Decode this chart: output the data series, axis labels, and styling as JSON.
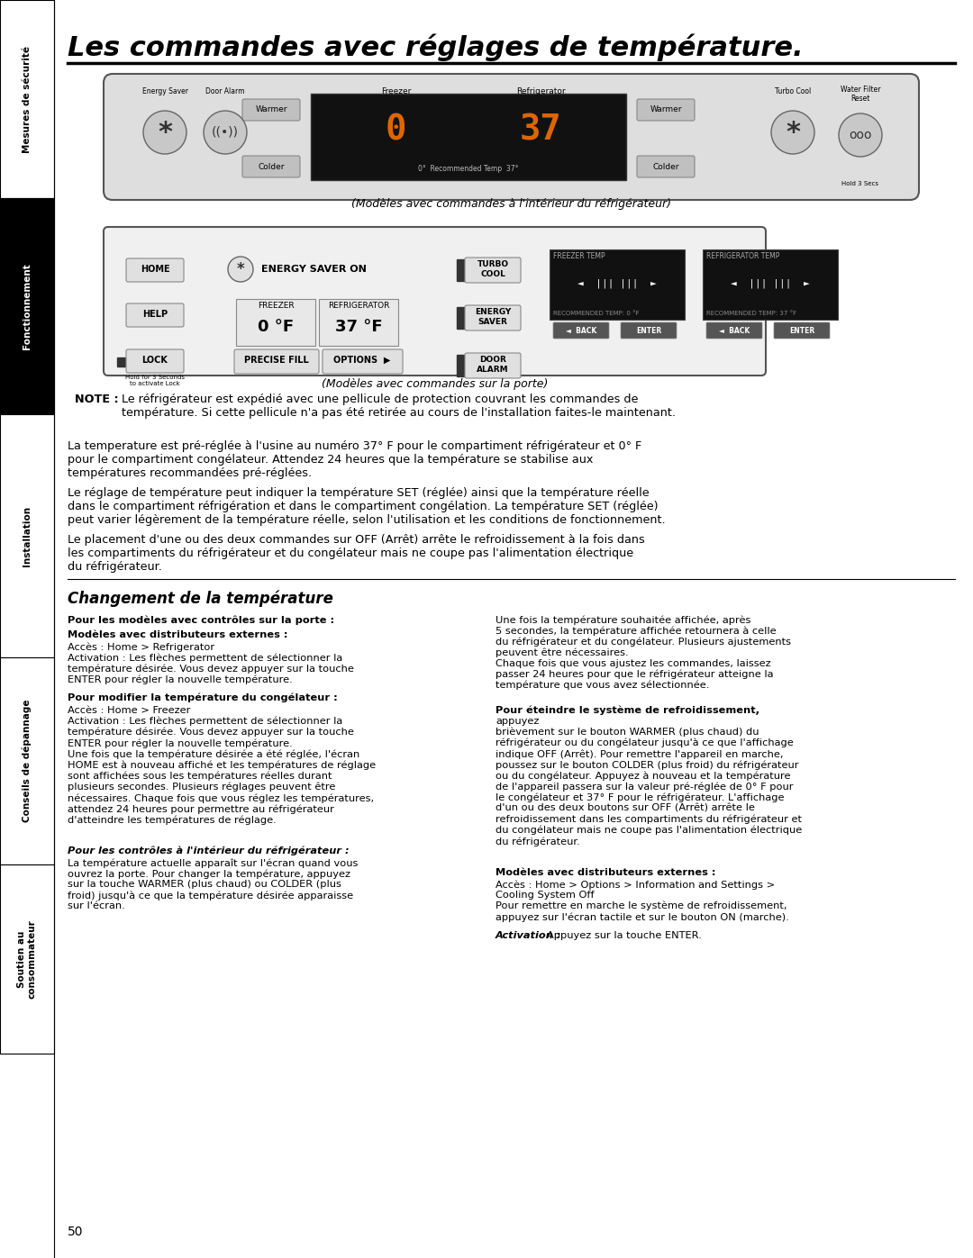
{
  "page_title": "Les commandes avec réglages de température.",
  "sidebar_sections": [
    {
      "label": "Mesures de sécurité",
      "bg": "#ffffff",
      "fg": "#000000"
    },
    {
      "label": "Fonctionnement",
      "bg": "#000000",
      "fg": "#ffffff"
    },
    {
      "label": "Installation",
      "bg": "#ffffff",
      "fg": "#000000"
    },
    {
      "label": "Conseils de dépannage",
      "bg": "#ffffff",
      "fg": "#000000"
    },
    {
      "label": "Soutien au\nconsommateur",
      "bg": "#ffffff",
      "fg": "#000000"
    }
  ],
  "caption1": "(Modèles avec commandes à l'intérieur du réfrigérateur)",
  "caption2": "(Modèles avec commandes sur la porte)",
  "note_bold": "NOTE : ",
  "note_text": "Le réfrigérateur est expédié avec une pellicule de protection couvrant les commandes de\ntempérature. Si cette pellicule n'a pas été retirée au cours de l'installation faites-le maintenant.",
  "para1": "La temperature est pré-réglée à l'usine au numéro 37° F pour le compartiment réfrigérateur et 0° F\npour le compartiment congélateur. Attendez 24 heures que la température se stabilise aux\ntempératures recommandées pré-réglées.",
  "para2": "Le réglage de température peut indiquer la température SET (réglée) ainsi que la température réelle\ndans le compartiment réfrigération et dans le compartiment congélation. La température SET (réglée)\npeut varier légèrement de la température réelle, selon l'utilisation et les conditions de fonctionnement.",
  "para3": "Le placement d'une ou des deux commandes sur OFF (Arrêt) arrête le refroidissement à la fois dans\nles compartiments du réfrigérateur et du congélateur mais ne coupe pas l'alimentation électrique\ndu réfrigérateur.",
  "section_title": "Changement de la température",
  "col1_title": "Pour les modèles avec contrôles sur la porte :",
  "col2_text1": "Une fois la température souhaitée affichée, après\n5 secondes, la température affichée retournera à celle\ndu réfrigérateur et du congélateur. Plusieurs ajustements\npeuvent être nécessaires.\nChaque fois que vous ajustez les commandes, laissez\npasser 24 heures pour que le réfrigérateur atteigne la\ntempérature que vous avez sélectionnée.",
  "page_number": "50",
  "bg_color": "#ffffff",
  "text_color": "#000000"
}
